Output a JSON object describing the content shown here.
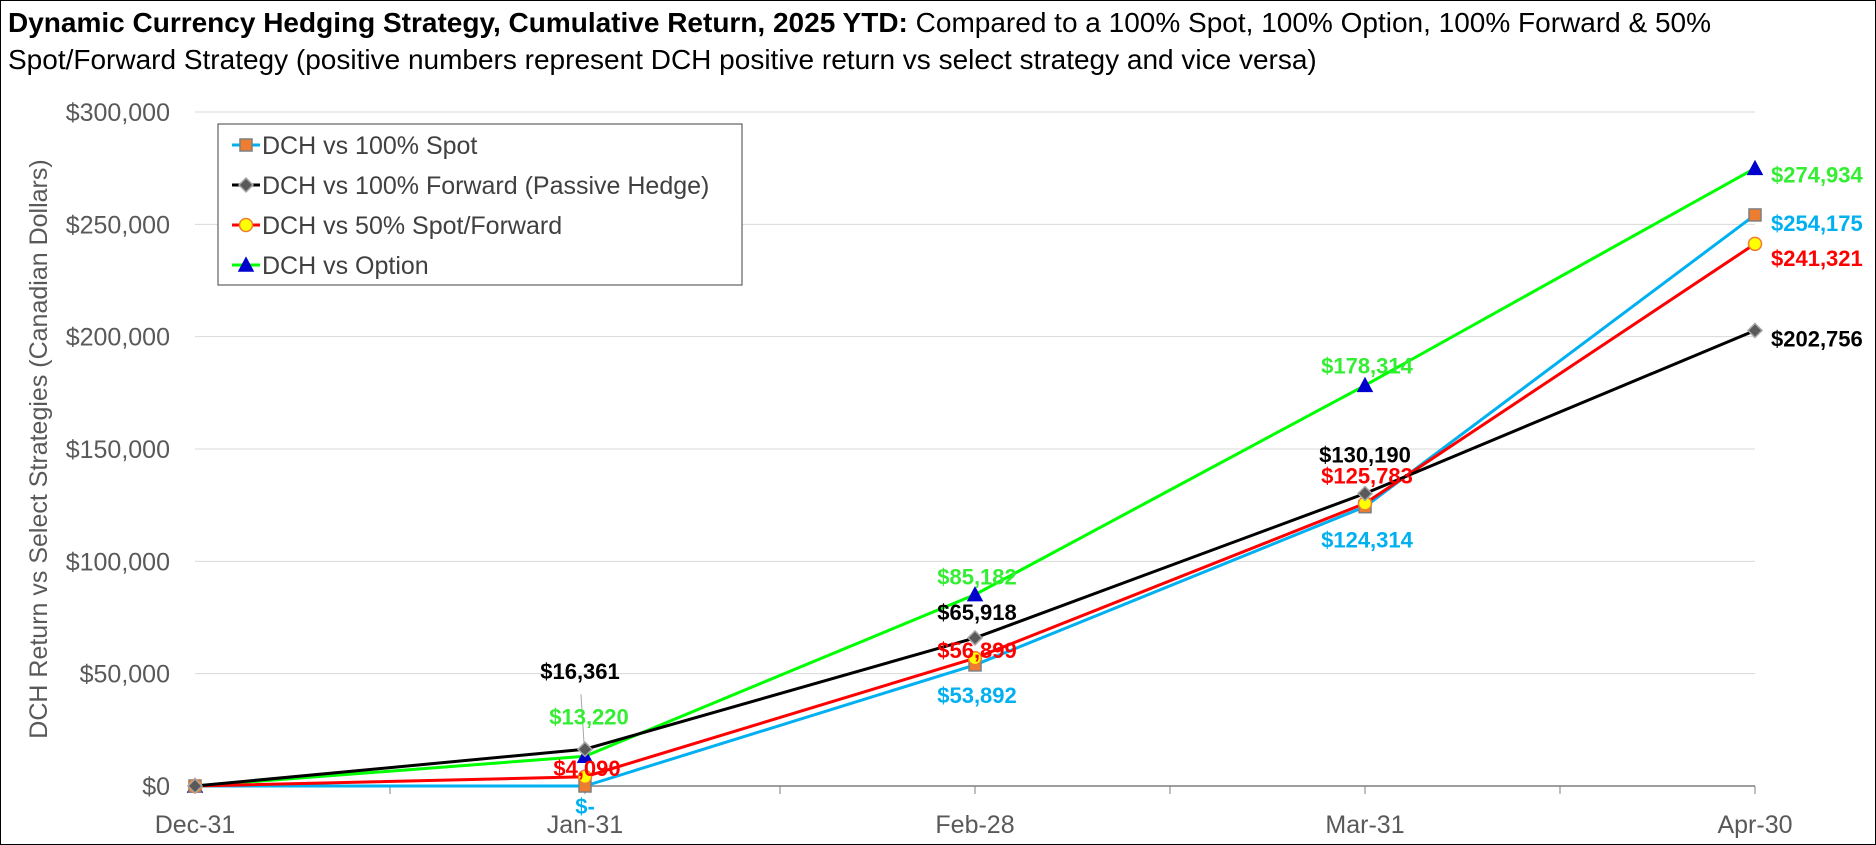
{
  "title": {
    "bold": "Dynamic Currency Hedging Strategy, Cumulative Return, 2025 YTD:",
    "rest": " Compared to a 100% Spot, 100% Option, 100% Forward & 50% Spot/Forward Strategy (positive numbers represent DCH positive return vs select strategy and vice versa)"
  },
  "chart_data": {
    "type": "line",
    "x": [
      "Dec-31",
      "Jan-31",
      "Feb-28",
      "Mar-31",
      "Apr-30"
    ],
    "ylabel": "DCH Return vs Select Strategies (Canadian Dollars)",
    "ylim": [
      0,
      300000
    ],
    "yticks": [
      0,
      50000,
      100000,
      150000,
      200000,
      250000,
      300000
    ],
    "ytick_labels": [
      "$0",
      "$50,000",
      "$100,000",
      "$150,000",
      "$200,000",
      "$250,000",
      "$300,000"
    ],
    "grid": true,
    "legend": "top-left",
    "series": [
      {
        "name": "DCH vs 100% Spot",
        "values": [
          0,
          0,
          53892,
          124314,
          254175
        ],
        "labels": [
          "",
          "$-",
          "$53,892",
          "$124,314",
          "$254,175"
        ],
        "line_color": "#00B0F0",
        "label_color": "#00B0F0",
        "marker": "square",
        "marker_fill": "#ED7D31",
        "marker_stroke": "#7F7F7F"
      },
      {
        "name": "DCH vs 100% Forward (Passive Hedge)",
        "values": [
          0,
          16361,
          65918,
          130190,
          202756
        ],
        "labels": [
          "",
          "$16,361",
          "$65,918",
          "$130,190",
          "$202,756"
        ],
        "line_color": "#000000",
        "label_color": "#000000",
        "marker": "diamond",
        "marker_fill": "#595959",
        "marker_stroke": "#A6A6A6"
      },
      {
        "name": "DCH vs 50% Spot/Forward",
        "values": [
          0,
          4090,
          56899,
          125783,
          241321
        ],
        "labels": [
          "",
          "$4,090",
          "$56,899",
          "$125,783",
          "$241,321"
        ],
        "line_color": "#FF0000",
        "label_color": "#FF0000",
        "marker": "circle",
        "marker_fill": "#FFFF00",
        "marker_stroke": "#ED7D31"
      },
      {
        "name": "DCH vs Option",
        "values": [
          0,
          13220,
          85182,
          178314,
          274934
        ],
        "labels": [
          "",
          "$13,220",
          "$85,182",
          "$178,314",
          "$274,934"
        ],
        "line_color": "#00FF00",
        "label_color": "#33EE33",
        "marker": "triangle",
        "marker_fill": "#0000CC",
        "marker_stroke": "#0000CC"
      }
    ]
  }
}
